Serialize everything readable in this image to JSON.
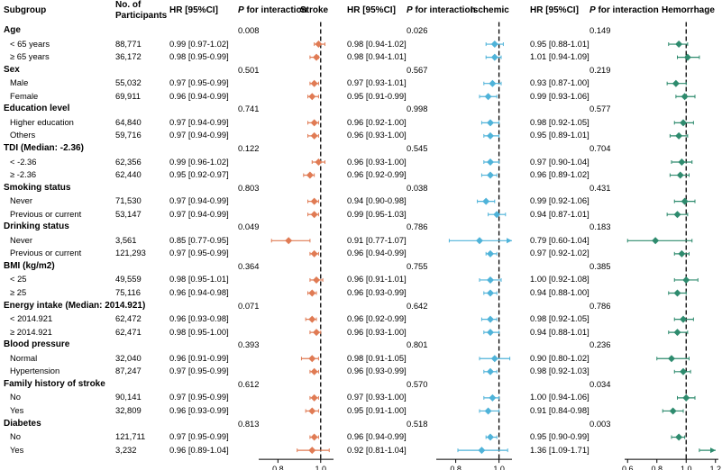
{
  "headers": {
    "subgroup": "Subgroup",
    "participants_l1": "No. of",
    "participants_l2": "Participants",
    "panels": [
      {
        "hr": "HR [95%CI]",
        "p_italic": "P",
        "p_rest": " for interaction",
        "outcome": "Stroke"
      },
      {
        "hr": "HR [95%CI]",
        "p_italic": "P",
        "p_rest": " for interaction",
        "outcome": "Ischemic"
      },
      {
        "hr": "HR [95%CI]",
        "p_italic": "P",
        "p_rest": " for interaction",
        "outcome": "Hemorrhage"
      }
    ]
  },
  "colors": {
    "stroke": "#e07b54",
    "ischemic": "#4fb3d9",
    "hemorrhage": "#2e8b6e"
  },
  "axes": [
    {
      "ticks": [
        0.8,
        1.0
      ],
      "tick_labels": [
        "0.8",
        "1.0"
      ],
      "min": 0.71,
      "max": 1.06,
      "ref": 1.0
    },
    {
      "ticks": [
        0.8,
        1.0
      ],
      "tick_labels": [
        "0.8",
        "1.0"
      ],
      "min": 0.71,
      "max": 1.06,
      "ref": 1.0
    },
    {
      "ticks": [
        0.6,
        0.8,
        1.0,
        1.2
      ],
      "tick_labels": [
        "0.6",
        "0.8",
        "1.0",
        "1.2"
      ],
      "min": 0.58,
      "max": 1.22,
      "ref": 1.0
    }
  ],
  "rows": [
    {
      "type": "cat",
      "label": "Age",
      "p": [
        "0.008",
        "0.026",
        "0.149"
      ]
    },
    {
      "type": "sub",
      "label": "< 65 years",
      "n": "88,771",
      "est": [
        [
          0.99,
          0.97,
          1.02
        ],
        [
          0.98,
          0.94,
          1.02
        ],
        [
          0.95,
          0.88,
          1.01
        ]
      ],
      "hr": [
        "0.99 [0.97-1.02]",
        "0.98 [0.94-1.02]",
        "0.95 [0.88-1.01]"
      ]
    },
    {
      "type": "sub",
      "label": "≥ 65 years",
      "n": "36,172",
      "est": [
        [
          0.98,
          0.95,
          0.99
        ],
        [
          0.98,
          0.94,
          1.01
        ],
        [
          1.01,
          0.94,
          1.09
        ]
      ],
      "hr": [
        "0.98 [0.95-0.99]",
        "0.98 [0.94-1.01]",
        "1.01 [0.94-1.09]"
      ]
    },
    {
      "type": "cat",
      "label": "Sex",
      "p": [
        "0.501",
        "0.567",
        "0.219"
      ]
    },
    {
      "type": "sub",
      "label": "Male",
      "n": "55,032",
      "est": [
        [
          0.97,
          0.95,
          0.99
        ],
        [
          0.97,
          0.93,
          1.01
        ],
        [
          0.93,
          0.87,
          1.0
        ]
      ],
      "hr": [
        "0.97 [0.95-0.99]",
        "0.97 [0.93-1.01]",
        "0.93 [0.87-1.00]"
      ]
    },
    {
      "type": "sub",
      "label": "Female",
      "n": "69,911",
      "est": [
        [
          0.96,
          0.94,
          0.99
        ],
        [
          0.95,
          0.91,
          0.99
        ],
        [
          0.99,
          0.93,
          1.06
        ]
      ],
      "hr": [
        "0.96 [0.94-0.99]",
        "0.95 [0.91-0.99]",
        "0.99 [0.93-1.06]"
      ]
    },
    {
      "type": "cat",
      "label": "Education level",
      "p": [
        "0.741",
        "0.998",
        "0.577"
      ]
    },
    {
      "type": "sub",
      "label": "Higher education",
      "n": "64,840",
      "est": [
        [
          0.97,
          0.94,
          0.99
        ],
        [
          0.96,
          0.92,
          1.0
        ],
        [
          0.98,
          0.92,
          1.05
        ]
      ],
      "hr": [
        "0.97 [0.94-0.99]",
        "0.96 [0.92-1.00]",
        "0.98 [0.92-1.05]"
      ]
    },
    {
      "type": "sub",
      "label": "Others",
      "n": "59,716",
      "est": [
        [
          0.97,
          0.94,
          0.99
        ],
        [
          0.96,
          0.93,
          1.0
        ],
        [
          0.95,
          0.89,
          1.01
        ]
      ],
      "hr": [
        "0.97 [0.94-0.99]",
        "0.96 [0.93-1.00]",
        "0.95 [0.89-1.01]"
      ]
    },
    {
      "type": "cat",
      "label": "TDI (Median: -2.36)",
      "p": [
        "0.122",
        "0.545",
        "0.704"
      ]
    },
    {
      "type": "sub",
      "label": "< -2.36",
      "n": "62,356",
      "est": [
        [
          0.99,
          0.96,
          1.02
        ],
        [
          0.96,
          0.93,
          1.0
        ],
        [
          0.97,
          0.9,
          1.04
        ]
      ],
      "hr": [
        "0.99 [0.96-1.02]",
        "0.96 [0.93-1.00]",
        "0.97 [0.90-1.04]"
      ]
    },
    {
      "type": "sub",
      "label": "≥ -2.36",
      "n": "62,440",
      "est": [
        [
          0.95,
          0.92,
          0.97
        ],
        [
          0.96,
          0.92,
          0.99
        ],
        [
          0.96,
          0.89,
          1.02
        ]
      ],
      "hr": [
        "0.95 [0.92-0.97]",
        "0.96 [0.92-0.99]",
        "0.96 [0.89-1.02]"
      ]
    },
    {
      "type": "cat",
      "label": "Smoking status",
      "p": [
        "0.803",
        "0.038",
        "0.431"
      ]
    },
    {
      "type": "sub",
      "label": "Never",
      "n": "71,530",
      "est": [
        [
          0.97,
          0.94,
          0.99
        ],
        [
          0.94,
          0.9,
          0.98
        ],
        [
          0.99,
          0.92,
          1.06
        ]
      ],
      "hr": [
        "0.97 [0.94-0.99]",
        "0.94 [0.90-0.98]",
        "0.99 [0.92-1.06]"
      ]
    },
    {
      "type": "sub",
      "label": "Previous or current",
      "n": "53,147",
      "est": [
        [
          0.97,
          0.94,
          0.99
        ],
        [
          0.99,
          0.95,
          1.03
        ],
        [
          0.94,
          0.87,
          1.01
        ]
      ],
      "hr": [
        "0.97 [0.94-0.99]",
        "0.99 [0.95-1.03]",
        "0.94 [0.87-1.01]"
      ]
    },
    {
      "type": "cat",
      "label": "Drinking status",
      "p": [
        "0.049",
        "0.786",
        "0.183"
      ]
    },
    {
      "type": "sub",
      "label": "Never",
      "n": "3,561",
      "est": [
        [
          0.85,
          0.77,
          0.95
        ],
        [
          0.91,
          0.77,
          1.07
        ],
        [
          0.79,
          0.6,
          1.04
        ]
      ],
      "hr": [
        "0.85 [0.77-0.95]",
        "0.91 [0.77-1.07]",
        "0.79 [0.60-1.04]"
      ]
    },
    {
      "type": "sub",
      "label": "Previous or current",
      "n": "121,293",
      "est": [
        [
          0.97,
          0.95,
          0.99
        ],
        [
          0.96,
          0.94,
          0.99
        ],
        [
          0.97,
          0.92,
          1.02
        ]
      ],
      "hr": [
        "0.97 [0.95-0.99]",
        "0.96 [0.94-0.99]",
        "0.97 [0.92-1.02]"
      ]
    },
    {
      "type": "cat",
      "label": "BMI (kg/m2)",
      "p": [
        "0.364",
        "0.755",
        "0.385"
      ]
    },
    {
      "type": "sub",
      "label": "< 25",
      "n": "49,559",
      "est": [
        [
          0.98,
          0.95,
          1.01
        ],
        [
          0.96,
          0.91,
          1.01
        ],
        [
          1.0,
          0.92,
          1.08
        ]
      ],
      "hr": [
        "0.98 [0.95-1.01]",
        "0.96 [0.91-1.01]",
        "1.00 [0.92-1.08]"
      ]
    },
    {
      "type": "sub",
      "label": "≥ 25",
      "n": "75,116",
      "est": [
        [
          0.96,
          0.94,
          0.98
        ],
        [
          0.96,
          0.93,
          0.99
        ],
        [
          0.94,
          0.88,
          1.0
        ]
      ],
      "hr": [
        "0.96 [0.94-0.98]",
        "0.96 [0.93-0.99]",
        "0.94 [0.88-1.00]"
      ]
    },
    {
      "type": "cat",
      "label": "Energy intake (Median: 2014.921)",
      "p": [
        "0.071",
        "0.642",
        "0.786"
      ]
    },
    {
      "type": "sub",
      "label": "< 2014.921",
      "n": "62,472",
      "est": [
        [
          0.96,
          0.93,
          0.98
        ],
        [
          0.96,
          0.92,
          0.99
        ],
        [
          0.98,
          0.92,
          1.05
        ]
      ],
      "hr": [
        "0.96 [0.93-0.98]",
        "0.96 [0.92-0.99]",
        "0.98 [0.92-1.05]"
      ]
    },
    {
      "type": "sub",
      "label": "≥ 2014.921",
      "n": "62,471",
      "est": [
        [
          0.98,
          0.95,
          1.0
        ],
        [
          0.96,
          0.93,
          1.0
        ],
        [
          0.94,
          0.88,
          1.01
        ]
      ],
      "hr": [
        "0.98 [0.95-1.00]",
        "0.96 [0.93-1.00]",
        "0.94 [0.88-1.01]"
      ]
    },
    {
      "type": "cat",
      "label": "Blood pressure",
      "p": [
        "0.393",
        "0.801",
        "0.236"
      ]
    },
    {
      "type": "sub",
      "label": "Normal",
      "n": "32,040",
      "est": [
        [
          0.96,
          0.91,
          0.99
        ],
        [
          0.98,
          0.91,
          1.05
        ],
        [
          0.9,
          0.8,
          1.02
        ]
      ],
      "hr": [
        "0.96 [0.91-0.99]",
        "0.98 [0.91-1.05]",
        "0.90 [0.80-1.02]"
      ]
    },
    {
      "type": "sub",
      "label": "Hypertension",
      "n": "87,247",
      "est": [
        [
          0.97,
          0.95,
          0.99
        ],
        [
          0.96,
          0.93,
          0.99
        ],
        [
          0.98,
          0.92,
          1.03
        ]
      ],
      "hr": [
        "0.97 [0.95-0.99]",
        "0.96 [0.93-0.99]",
        "0.98 [0.92-1.03]"
      ]
    },
    {
      "type": "cat",
      "label": "Family history of stroke",
      "p": [
        "0.612",
        "0.570",
        "0.034"
      ]
    },
    {
      "type": "sub",
      "label": "No",
      "n": "90,141",
      "est": [
        [
          0.97,
          0.95,
          0.99
        ],
        [
          0.97,
          0.93,
          1.0
        ],
        [
          1.0,
          0.94,
          1.06
        ]
      ],
      "hr": [
        "0.97 [0.95-0.99]",
        "0.97 [0.93-1.00]",
        "1.00 [0.94-1.06]"
      ]
    },
    {
      "type": "sub",
      "label": "Yes",
      "n": "32,809",
      "est": [
        [
          0.96,
          0.93,
          0.99
        ],
        [
          0.95,
          0.91,
          1.0
        ],
        [
          0.91,
          0.84,
          0.98
        ]
      ],
      "hr": [
        "0.96 [0.93-0.99]",
        "0.95 [0.91-1.00]",
        "0.91 [0.84-0.98]"
      ]
    },
    {
      "type": "cat",
      "label": "Diabetes",
      "p": [
        "0.813",
        "0.518",
        "0.003"
      ]
    },
    {
      "type": "sub",
      "label": "No",
      "n": "121,711",
      "est": [
        [
          0.97,
          0.95,
          0.99
        ],
        [
          0.96,
          0.94,
          0.99
        ],
        [
          0.95,
          0.9,
          0.99
        ]
      ],
      "hr": [
        "0.97 [0.95-0.99]",
        "0.96 [0.94-0.99]",
        "0.95 [0.90-0.99]"
      ]
    },
    {
      "type": "sub",
      "label": "Yes",
      "n": "3,232",
      "est": [
        [
          0.96,
          0.89,
          1.04
        ],
        [
          0.92,
          0.81,
          1.04
        ],
        [
          1.36,
          1.09,
          1.71
        ]
      ],
      "hr": [
        "0.96 [0.89-1.04]",
        "0.92 [0.81-1.04]",
        "1.36 [1.09-1.71]"
      ]
    }
  ]
}
